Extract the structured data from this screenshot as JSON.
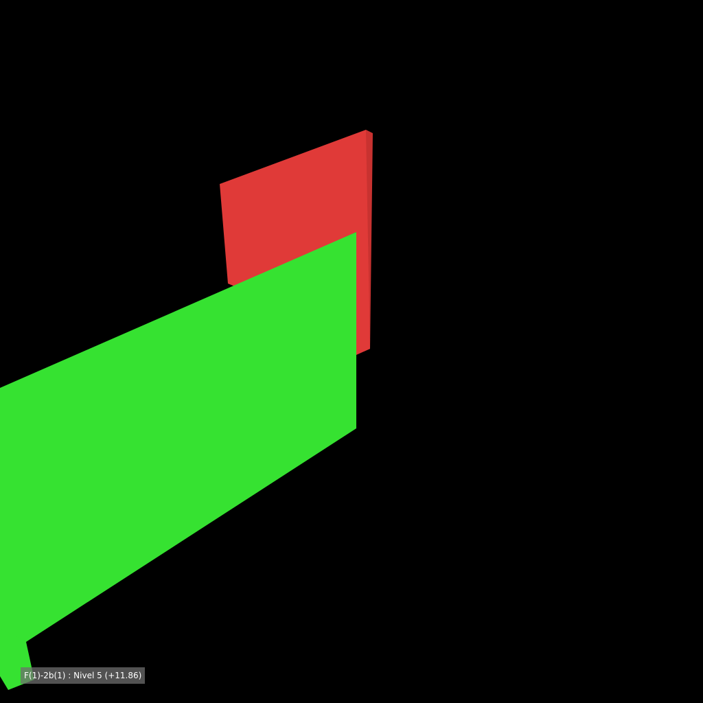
{
  "viewport": {
    "background_color": "#000000"
  },
  "scene": {
    "walls": [
      {
        "name": "red-wall",
        "color": "#e03a38",
        "shade_color": "#c83230"
      },
      {
        "name": "green-wall",
        "color": "#36e231",
        "shade_color": "#2ec82a"
      }
    ]
  },
  "status": {
    "level_label": "F(1)-2b(1) : Nivel 5 (+11.86)"
  }
}
